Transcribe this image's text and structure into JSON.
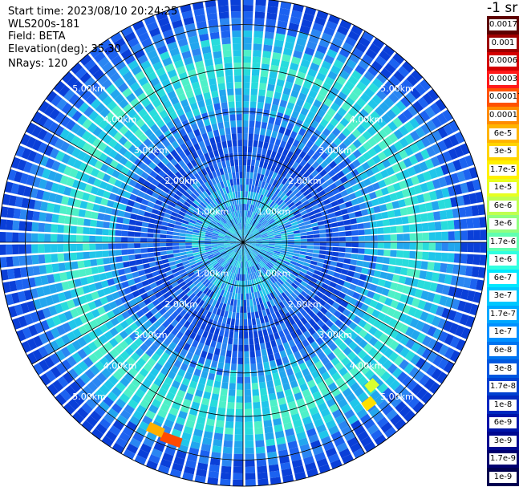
{
  "header": {
    "start_time": "Start time: 2023/08/10 20:24:25",
    "device": "WLS200s-181",
    "field": "Field: BETA",
    "elevation": "Elevation(deg): 35.30",
    "nrays": "NRays: 120"
  },
  "chart_data": {
    "type": "heatmap",
    "projection": "polar",
    "rays": 120,
    "range_labels": [
      "1.00km",
      "2.00km",
      "3.00km",
      "4.00km",
      "5.00km"
    ],
    "range_max_km": 5.6,
    "colorbar": {
      "title": "-1 sr",
      "tick_labels": [
        "0.0017",
        "0.001",
        "0.0006",
        "0.0003",
        "0.00017",
        "0.0001",
        "6e-5",
        "3e-5",
        "1.7e-5",
        "1e-5",
        "6e-6",
        "3e-6",
        "1.7e-6",
        "1e-6",
        "6e-7",
        "3e-7",
        "1.7e-7",
        "1e-7",
        "6e-8",
        "3e-8",
        "1.7e-8",
        "1e-8",
        "6e-9",
        "3e-9",
        "1.7e-9",
        "1e-9"
      ],
      "colors": [
        "#5e0000",
        "#9e0000",
        "#d40000",
        "#ff1a1a",
        "#ff5200",
        "#ff8c00",
        "#ffb400",
        "#ffd400",
        "#fff000",
        "#e8ff20",
        "#c0ff50",
        "#90ff80",
        "#60ffb0",
        "#30ffe0",
        "#00e8ff",
        "#00c8ff",
        "#00a8ff",
        "#0090ff",
        "#0074f0",
        "#0058e0",
        "#0040d0",
        "#0028c0",
        "#0014a8",
        "#000890",
        "#000070",
        "#000050"
      ]
    },
    "grid": true
  }
}
